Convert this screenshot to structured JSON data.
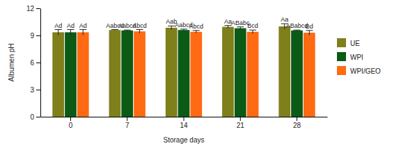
{
  "chart_data": {
    "type": "bar",
    "x_label": "Storage days",
    "y_label": "Albumen pH",
    "categories": [
      "0",
      "7",
      "14",
      "21",
      "28"
    ],
    "series": [
      {
        "name": "UE",
        "color": "#7f7f1c",
        "values": [
          9.35,
          9.6,
          9.85,
          9.95,
          10.0
        ],
        "errors": [
          0.3,
          0.05,
          0.2,
          0.15,
          0.3
        ],
        "letters": [
          "Ad",
          "Aabcd",
          "Aab",
          "Aa",
          "Aa"
        ]
      },
      {
        "name": "WPI",
        "color": "#0b5a16",
        "values": [
          9.35,
          9.55,
          9.6,
          9.8,
          9.55
        ],
        "errors": [
          0.3,
          0.05,
          0.1,
          0.15,
          0.05
        ],
        "letters": [
          "Ad",
          "Aabcd",
          "Aabcd",
          "ABabc",
          "ABabcd"
        ]
      },
      {
        "name": "WPI/GEO",
        "color": "#ff6a12",
        "values": [
          9.35,
          9.45,
          9.4,
          9.4,
          9.3
        ],
        "errors": [
          0.3,
          0.2,
          0.15,
          0.2,
          0.25
        ],
        "letters": [
          "Ad",
          "Abcd",
          "Abcd",
          "Bcd",
          "Bd"
        ]
      }
    ],
    "ylim": [
      0,
      12
    ],
    "yticks": [
      0,
      3,
      6,
      9,
      12
    ],
    "grid": false,
    "legend": "right"
  }
}
